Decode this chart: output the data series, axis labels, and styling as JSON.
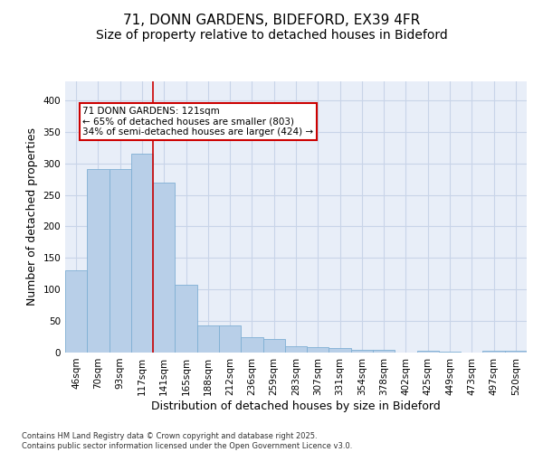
{
  "title_line1": "71, DONN GARDENS, BIDEFORD, EX39 4FR",
  "title_line2": "Size of property relative to detached houses in Bideford",
  "xlabel": "Distribution of detached houses by size in Bideford",
  "ylabel": "Number of detached properties",
  "categories": [
    "46sqm",
    "70sqm",
    "93sqm",
    "117sqm",
    "141sqm",
    "165sqm",
    "188sqm",
    "212sqm",
    "236sqm",
    "259sqm",
    "283sqm",
    "307sqm",
    "331sqm",
    "354sqm",
    "378sqm",
    "402sqm",
    "425sqm",
    "449sqm",
    "473sqm",
    "497sqm",
    "520sqm"
  ],
  "values": [
    130,
    291,
    291,
    315,
    270,
    108,
    43,
    43,
    25,
    21,
    10,
    9,
    7,
    4,
    4,
    0,
    3,
    2,
    0,
    3,
    3
  ],
  "bar_color": "#b8cfe8",
  "bar_edge_color": "#7fafd4",
  "vline_x_index": 3.5,
  "vline_color": "#cc0000",
  "annotation_text": "71 DONN GARDENS: 121sqm\n← 65% of detached houses are smaller (803)\n34% of semi-detached houses are larger (424) →",
  "annotation_box_edgecolor": "#cc0000",
  "ylim": [
    0,
    430
  ],
  "yticks": [
    0,
    50,
    100,
    150,
    200,
    250,
    300,
    350,
    400
  ],
  "grid_color": "#c8d4e8",
  "background_color": "#e8eef8",
  "footnote": "Contains HM Land Registry data © Crown copyright and database right 2025.\nContains public sector information licensed under the Open Government Licence v3.0.",
  "title_fontsize": 11,
  "subtitle_fontsize": 10,
  "tick_fontsize": 7.5,
  "label_fontsize": 9,
  "annot_fontsize": 7.5,
  "footnote_fontsize": 6
}
